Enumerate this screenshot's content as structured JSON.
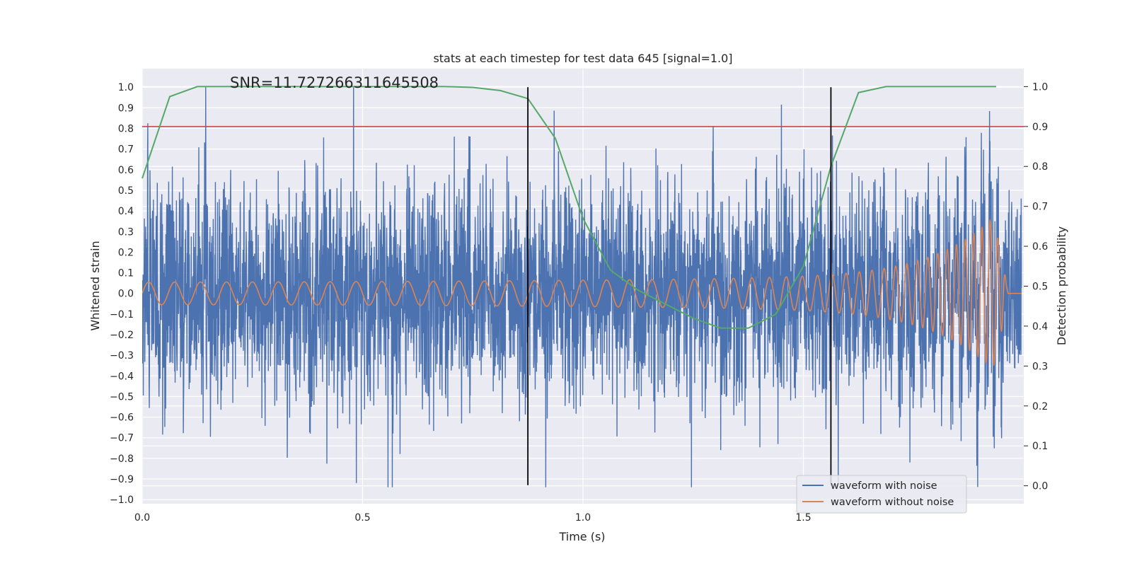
{
  "chart_data": {
    "type": "line",
    "title": "stats at each timestep for test data 645 [signal=1.0]",
    "annotation": "SNR=11.727266311645508",
    "xlabel": "Time (s)",
    "ylabel": "Whitened strain",
    "y2label": "Detection probability",
    "xlim": [
      0.0,
      2.0
    ],
    "ylim": [
      -1.02,
      1.09
    ],
    "y2lim": [
      -0.045,
      1.045
    ],
    "x_ticks": [
      "0.0",
      "0.5",
      "1.0",
      "1.5"
    ],
    "y_ticks": [
      "1.0",
      "0.9",
      "0.8",
      "0.7",
      "0.6",
      "0.5",
      "0.4",
      "0.3",
      "0.2",
      "0.1",
      "0.0",
      "−0.1",
      "−0.2",
      "−0.3",
      "−0.4",
      "−0.5",
      "−0.6",
      "−0.7",
      "−0.8",
      "−0.9",
      "−1.0"
    ],
    "y2_ticks": [
      "1.0",
      "0.9",
      "0.8",
      "0.7",
      "0.6",
      "0.5",
      "0.4",
      "0.3",
      "0.2",
      "0.1",
      "0.0"
    ],
    "grid": true,
    "legend_position": "lower-right",
    "series": [
      {
        "name": "waveform with noise",
        "color": "#4c72b0",
        "axis": "left",
        "noise_amplitude": 0.26,
        "sample_rate_hz": 2048
      },
      {
        "name": "waveform without noise",
        "color": "#dd8452",
        "axis": "left",
        "f_start_hz": 17,
        "f_end_hz": 60,
        "amplitude_start": 0.055,
        "amplitude_peak": 0.4,
        "merger_time_s": 1.96
      },
      {
        "name": "detection probability",
        "color": "#55a868",
        "axis": "right",
        "x": [
          0.0,
          0.0625,
          0.125,
          0.1875,
          0.25,
          0.3125,
          0.375,
          0.4375,
          0.5,
          0.5625,
          0.625,
          0.6875,
          0.75,
          0.8125,
          0.875,
          0.9375,
          1.0,
          1.0625,
          1.125,
          1.1875,
          1.25,
          1.3125,
          1.375,
          1.4375,
          1.5,
          1.5625,
          1.625,
          1.6875,
          1.75,
          1.8125,
          1.875,
          1.9375
        ],
        "values": [
          0.77,
          0.975,
          1.0,
          1.0,
          1.0,
          1.0,
          1.0,
          1.0,
          1.0,
          1.0,
          1.0,
          1.0,
          0.998,
          0.99,
          0.97,
          0.87,
          0.67,
          0.54,
          0.49,
          0.455,
          0.42,
          0.395,
          0.395,
          0.43,
          0.55,
          0.8,
          0.985,
          1.0,
          1.0,
          1.0,
          1.0,
          1.0
        ]
      }
    ],
    "threshold": {
      "value": 0.9,
      "axis": "right",
      "color": "#c44e52"
    },
    "vertical_markers": {
      "x": [
        0.875,
        1.5625
      ],
      "y_range": [
        -0.93,
        1.0
      ],
      "color": "#000000"
    },
    "legend": [
      {
        "label": "waveform with noise",
        "color": "#4c72b0"
      },
      {
        "label": "waveform without noise",
        "color": "#dd8452"
      }
    ]
  }
}
